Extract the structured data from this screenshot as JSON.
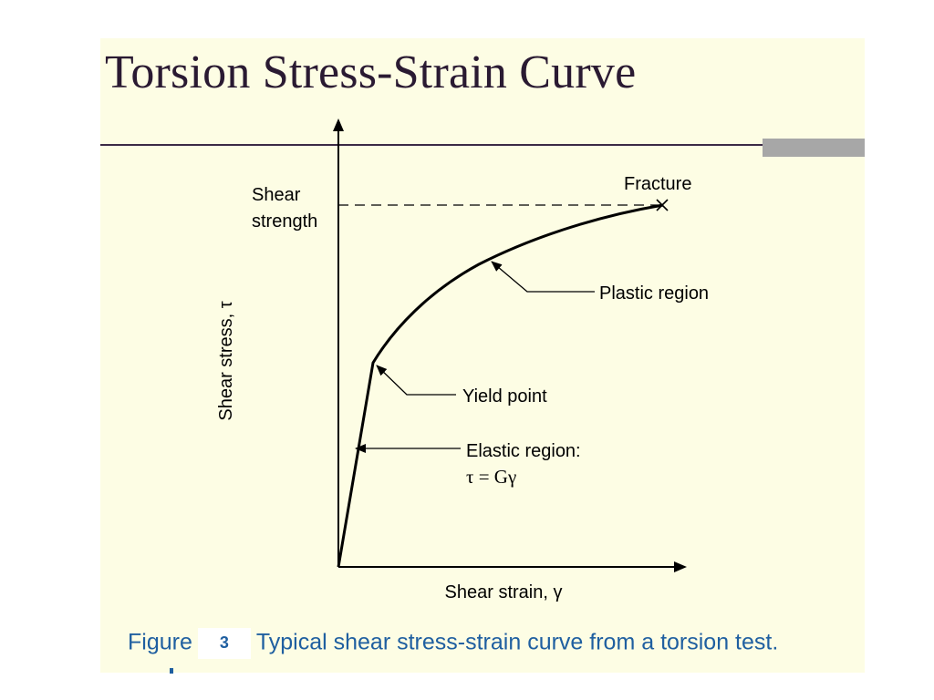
{
  "slide": {
    "title": "Torsion Stress-Strain Curve",
    "accent_color": "#a7a7a7",
    "background_color": "#fdfde4"
  },
  "diagram": {
    "y_axis_label": "Shear stress, τ",
    "x_axis_label": "Shear strain, γ",
    "shear_strength_label": [
      "Shear",
      "strength"
    ],
    "fracture_label": "Fracture",
    "plastic_region_label": "Plastic region",
    "yield_point_label": "Yield point",
    "elastic_region_label": "Elastic region:",
    "elastic_equation": "τ = Gγ"
  },
  "caption": {
    "prefix": "Figure",
    "number": "3",
    "text": "Typical shear stress-strain curve from a torsion test.",
    "color": "#1f5fa0"
  }
}
